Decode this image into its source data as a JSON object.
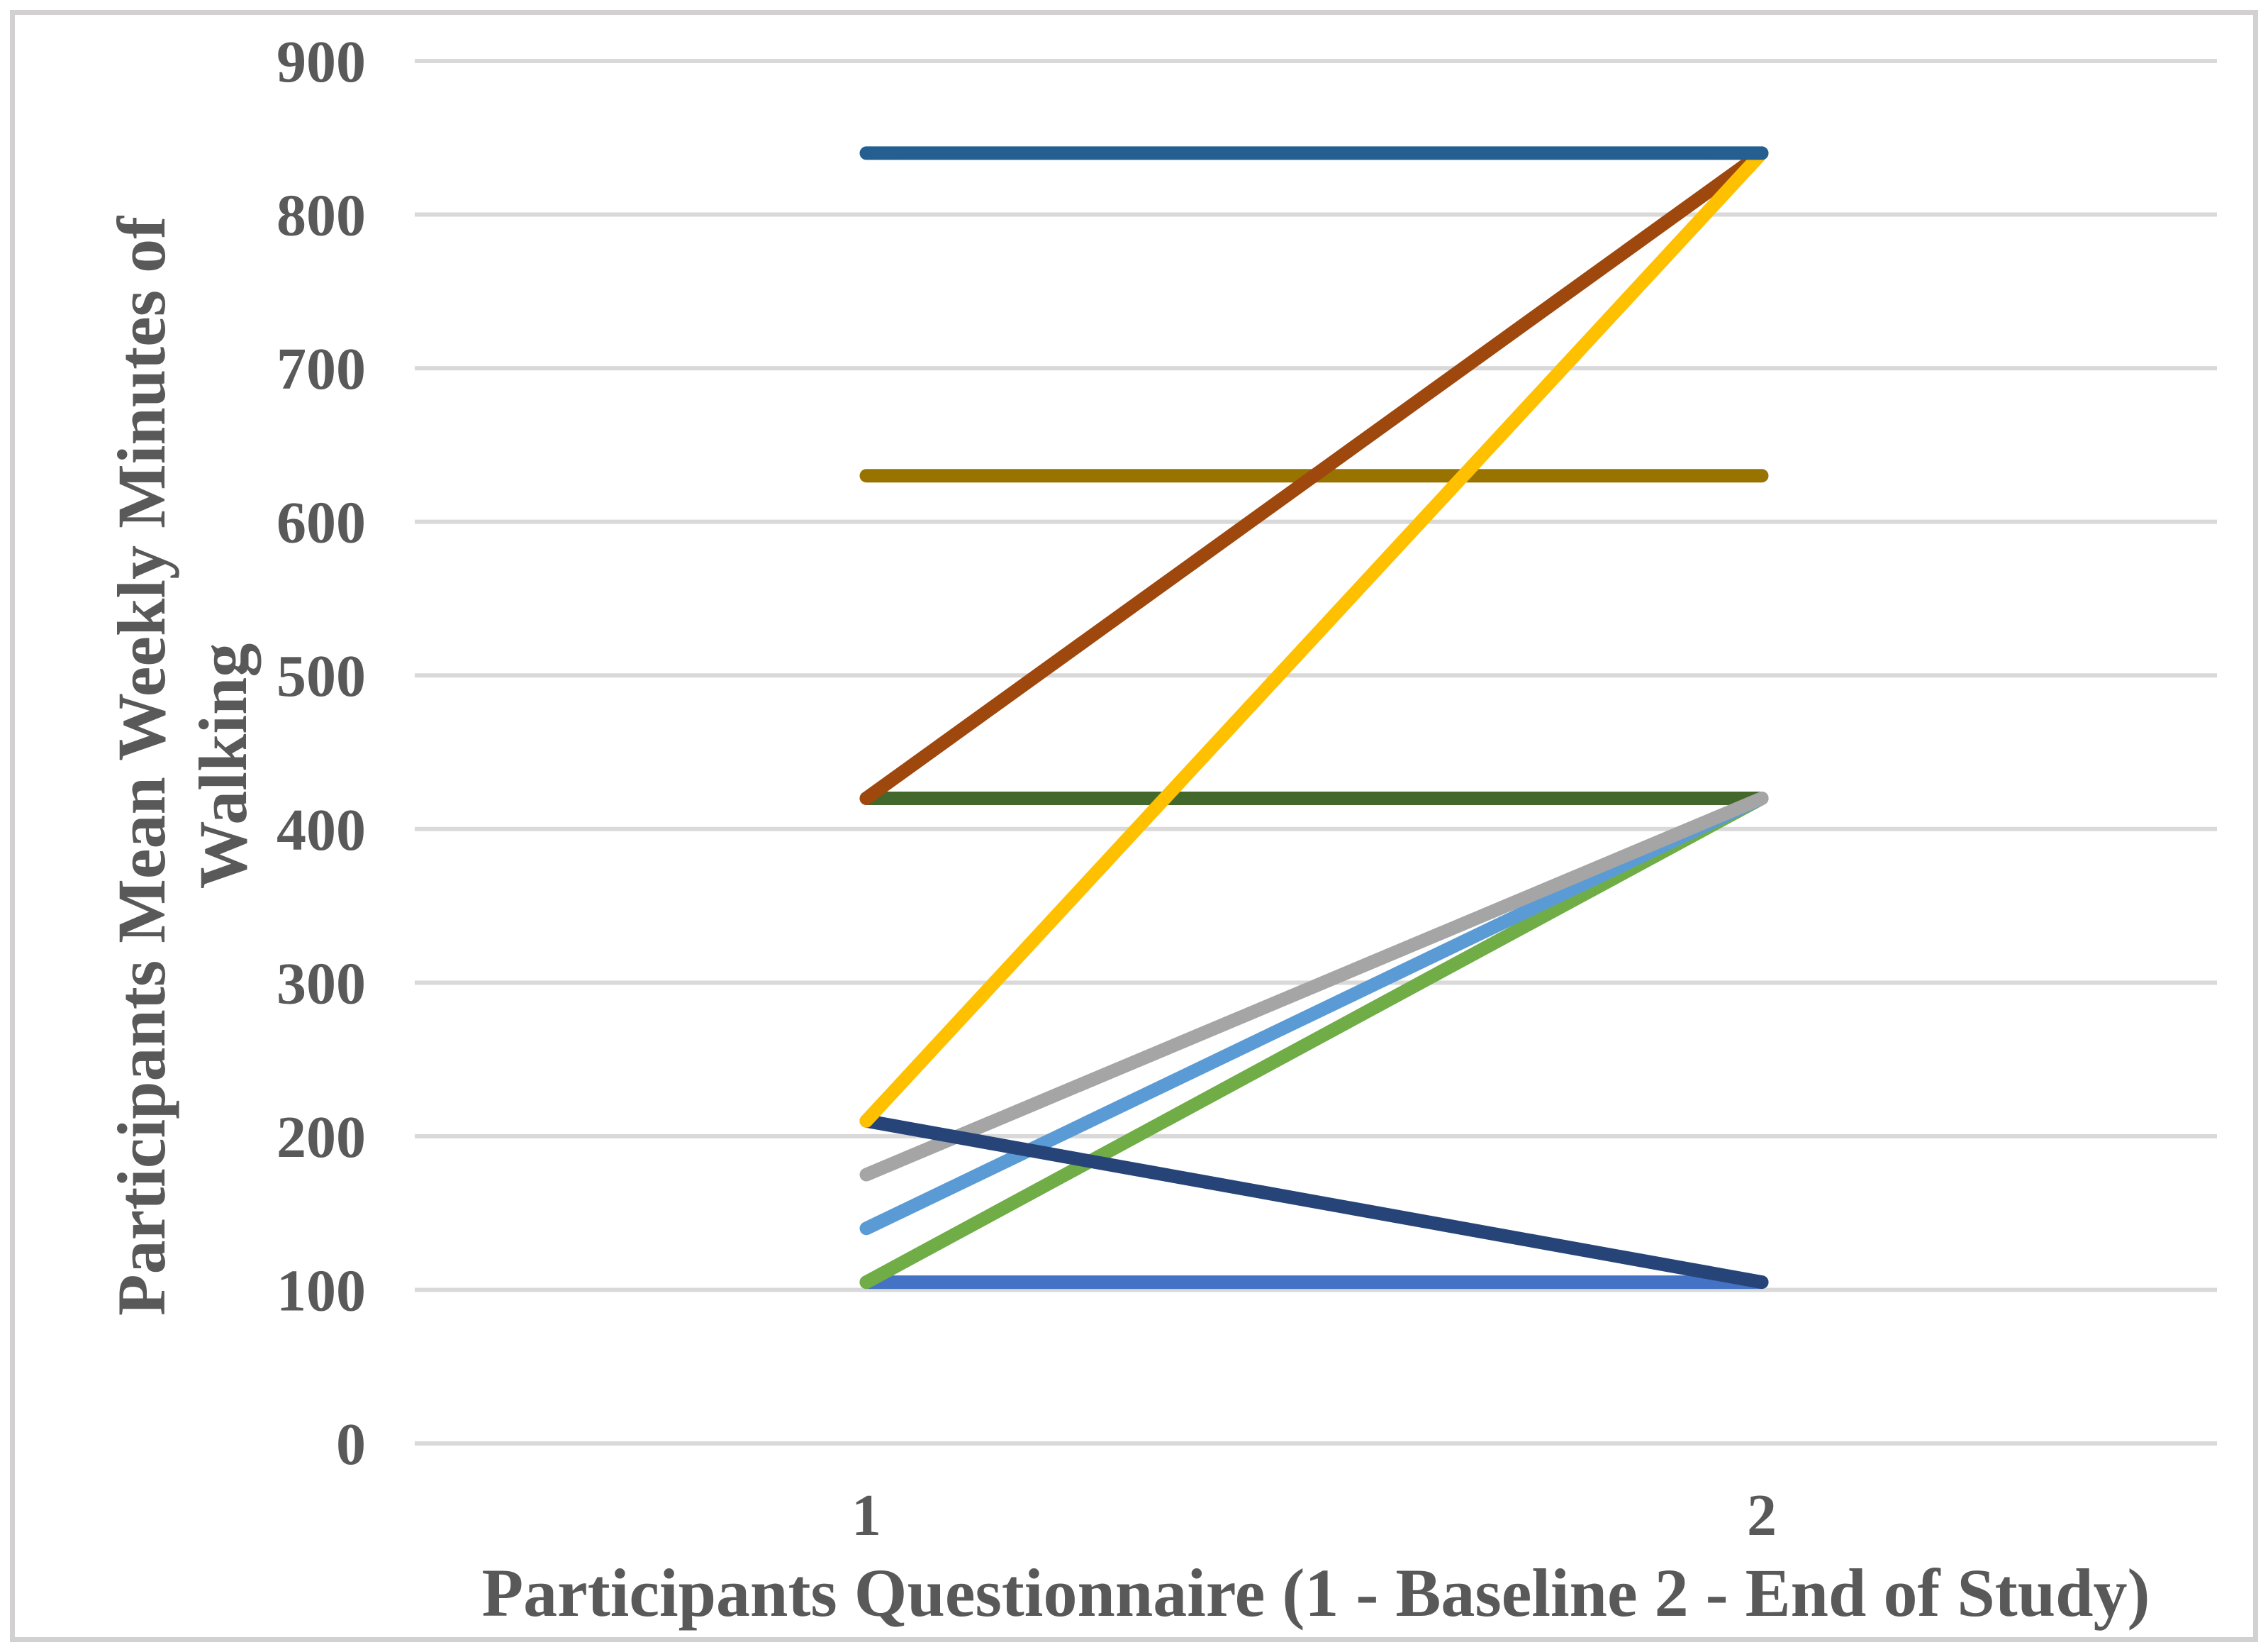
{
  "chart_data": {
    "type": "line",
    "title": "",
    "xlabel": "Participants Questionnaire (1 - Baseline 2 - End of Study)",
    "ylabel_line1": "Participants Mean Weekly Minutes of",
    "ylabel_line2": "Walking",
    "x_tick_labels": [
      "1",
      "2"
    ],
    "y_ticks": [
      0,
      100,
      200,
      300,
      400,
      500,
      600,
      700,
      800,
      900
    ],
    "ylim": [
      0,
      900
    ],
    "grid": "horizontal-only",
    "legend": "none",
    "series": [
      {
        "name": "participant-line-1",
        "color": "#4472C4",
        "values": [
          105,
          105
        ]
      },
      {
        "name": "participant-line-2",
        "color": "#997300",
        "values": [
          630,
          630
        ]
      },
      {
        "name": "participant-line-3",
        "color": "#43682B",
        "values": [
          420,
          420
        ]
      },
      {
        "name": "participant-line-4",
        "color": "#70AD47",
        "values": [
          105,
          420
        ]
      },
      {
        "name": "participant-line-5",
        "color": "#5B9BD5",
        "values": [
          140,
          420
        ]
      },
      {
        "name": "participant-line-6",
        "color": "#A5A5A5",
        "values": [
          175,
          420
        ]
      },
      {
        "name": "participant-line-7",
        "color": "#264478",
        "values": [
          210,
          105
        ]
      },
      {
        "name": "participant-line-8",
        "color": "#9E480E",
        "values": [
          420,
          840
        ]
      },
      {
        "name": "participant-line-9",
        "color": "#FFC000",
        "values": [
          210,
          840
        ]
      },
      {
        "name": "participant-line-10",
        "color": "#255E91",
        "values": [
          840,
          840
        ]
      }
    ],
    "styles": {
      "text_color": "#595959",
      "gridline_color": "#D9D9D9",
      "frame_border_color": "#D2D0D0",
      "background": "#FFFFFF"
    }
  }
}
